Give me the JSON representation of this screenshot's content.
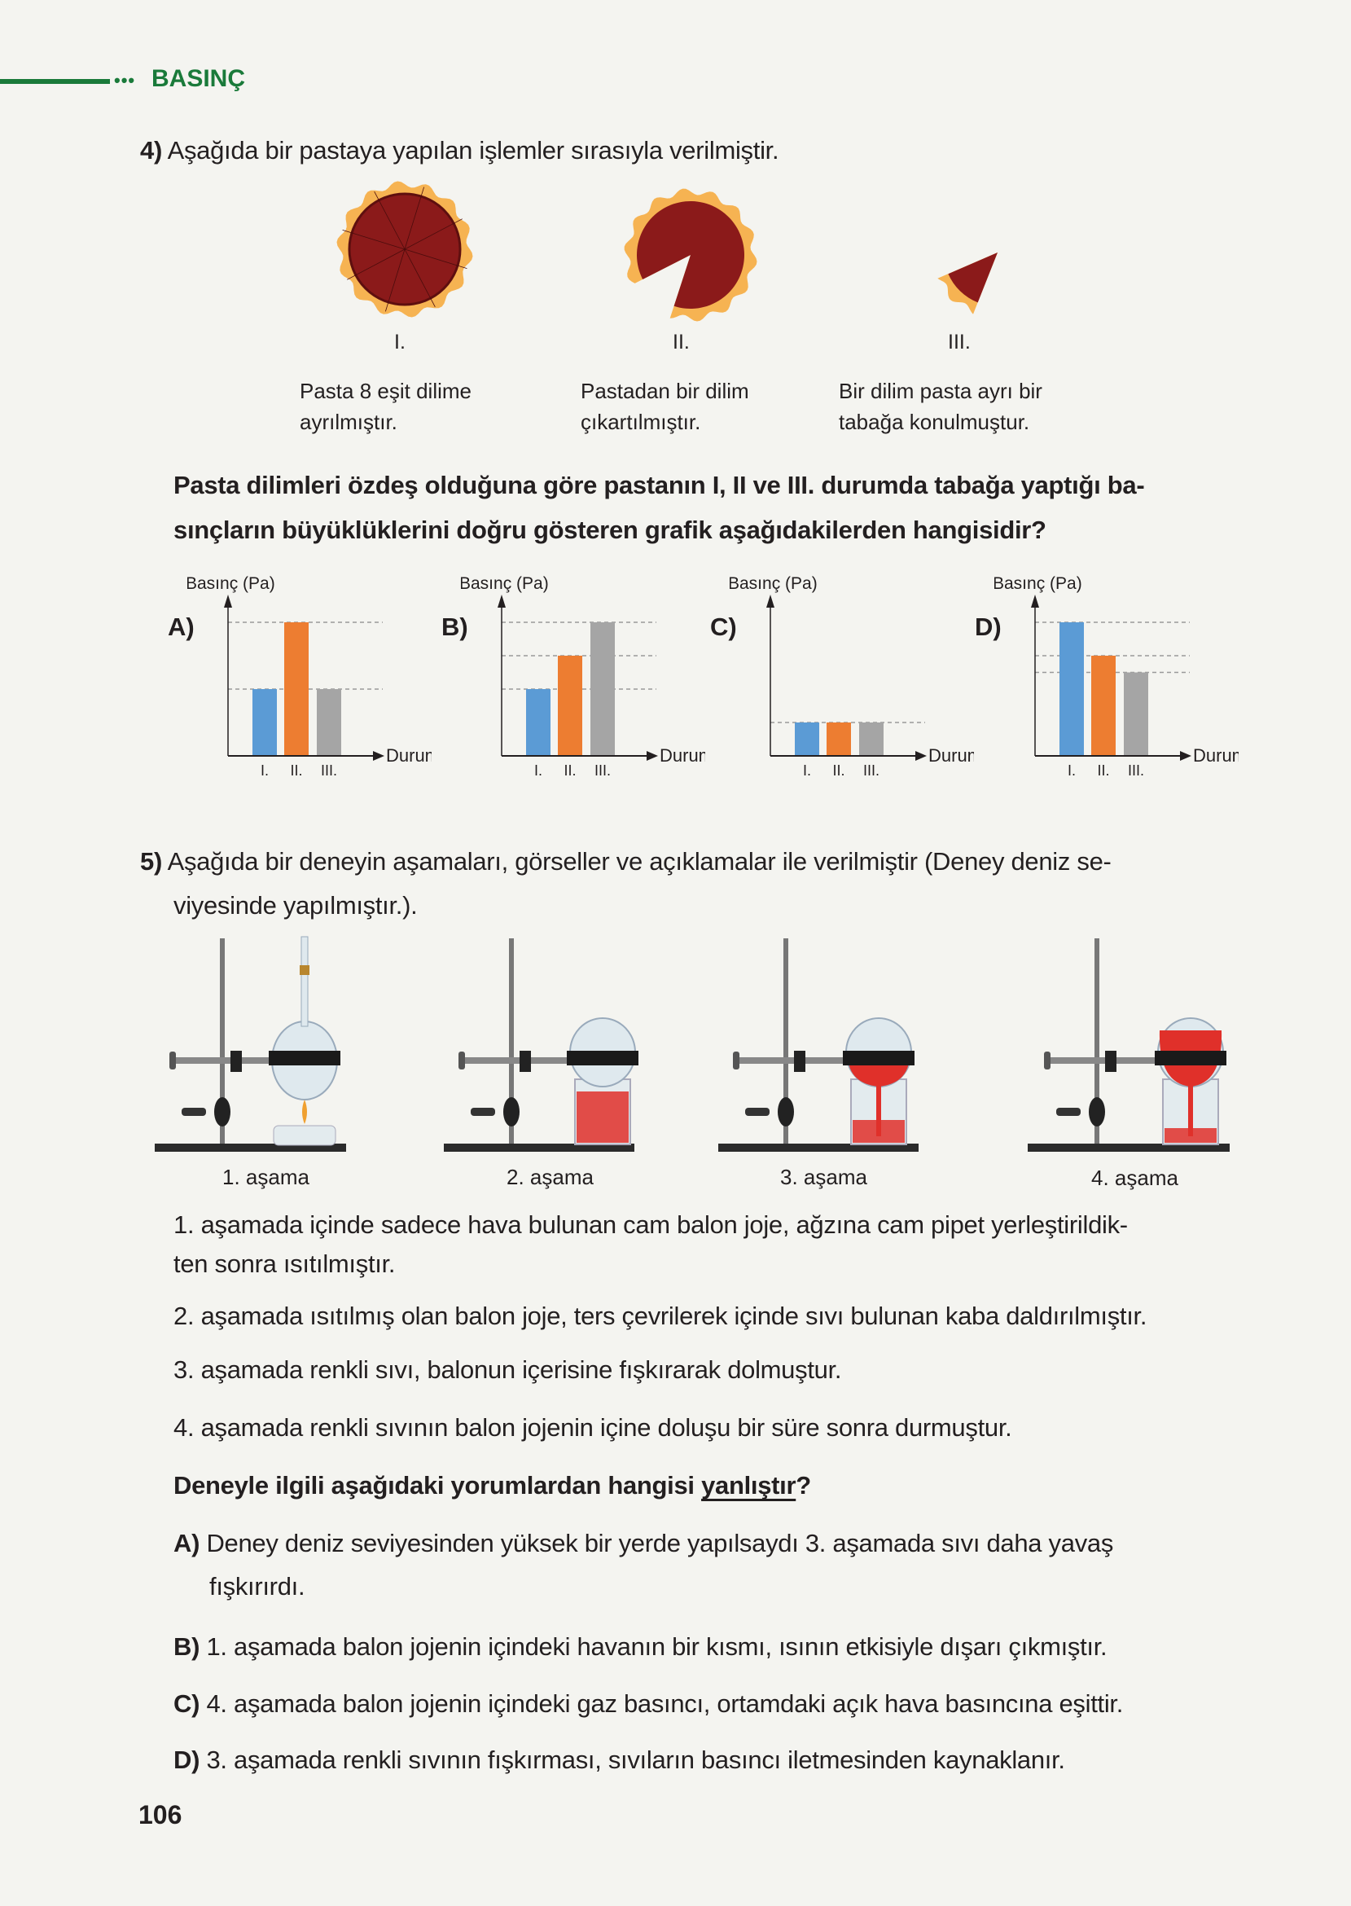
{
  "header": {
    "section_title": "BASINÇ"
  },
  "colors": {
    "accent_green": "#1a7a3a",
    "bar_I": "#5b9bd5",
    "bar_II": "#ed7d31",
    "bar_III": "#a5a5a5",
    "pie_filling": "#8b1a1a",
    "pie_crust": "#f6b352",
    "liquid": "#e0302a"
  },
  "q4": {
    "number": "4)",
    "text": "Aşağıda bir pastaya yapılan işlemler sırasıyla verilmiştir.",
    "stages": [
      {
        "label": "I.",
        "caption1": "Pasta 8 eşit dilime",
        "caption2": "ayrılmıştır."
      },
      {
        "label": "II.",
        "caption1": "Pastadan bir dilim",
        "caption2": "çıkartılmıştır."
      },
      {
        "label": "III.",
        "caption1": "Bir dilim pasta ayrı bir",
        "caption2": "tabağa konulmuştur."
      }
    ],
    "question_line1": "Pasta dilimleri özdeş olduğuna göre pastanın I, II ve III. durumda tabağa yaptığı ba-",
    "question_line2": "sınçların büyüklüklerini doğru gösteren grafik aşağıdakilerden hangisidir?"
  },
  "chart_data": [
    {
      "type": "bar",
      "option": "A)",
      "ylabel": "Basınç (Pa)",
      "xlabel": "Durum",
      "categories": [
        "I.",
        "II.",
        "III."
      ],
      "values": [
        2,
        4,
        2
      ],
      "grid": "dashed reference lines"
    },
    {
      "type": "bar",
      "option": "B)",
      "ylabel": "Basınç (Pa)",
      "xlabel": "Durum",
      "categories": [
        "I.",
        "II.",
        "III."
      ],
      "values": [
        2,
        3,
        4
      ],
      "grid": "dashed reference lines"
    },
    {
      "type": "bar",
      "option": "C)",
      "ylabel": "Basınç (Pa)",
      "xlabel": "Durum",
      "categories": [
        "I.",
        "II.",
        "III."
      ],
      "values": [
        1,
        1,
        1
      ],
      "grid": "dashed reference lines"
    },
    {
      "type": "bar",
      "option": "D)",
      "ylabel": "Basınç (Pa)",
      "xlabel": "Durum",
      "categories": [
        "I.",
        "II.",
        "III."
      ],
      "values": [
        4,
        3,
        2.5
      ],
      "grid": "dashed reference lines"
    }
  ],
  "q5": {
    "number": "5)",
    "text_line1": "Aşağıda bir deneyin aşamaları, görseller ve açıklamalar ile verilmiştir (Deney deniz se-",
    "text_line2": "viyesinde yapılmıştır.).",
    "stage_labels": [
      "1. aşama",
      "2. aşama",
      "3. aşama",
      "4. aşama"
    ],
    "statements": [
      "1. aşamada içinde sadece hava bulunan cam balon joje, ağzına cam pipet yerleştirildik-",
      "ten sonra ısıtılmıştır.",
      "2. aşamada ısıtılmış olan balon joje, ters çevrilerek içinde sıvı bulunan kaba daldırılmıştır.",
      "3. aşamada renkli sıvı, balonun içerisine fışkırarak dolmuştur.",
      "4. aşamada renkli sıvının balon jojenin içine doluşu bir süre sonra durmuştur."
    ],
    "question_prefix": "Deneyle ilgili aşağıdaki yorumlardan hangisi ",
    "question_underlined": "yanlıştır",
    "question_suffix": "?",
    "options": [
      {
        "letter": "A)",
        "line1": "Deney deniz seviyesinden yüksek bir yerde yapılsaydı 3. aşamada sıvı daha yavaş",
        "line2": "fışkırırdı."
      },
      {
        "letter": "B)",
        "line1": "1. aşamada balon jojenin içindeki havanın bir kısmı, ısının etkisiyle dışarı çıkmıştır."
      },
      {
        "letter": "C)",
        "line1": "4. aşamada balon jojenin içindeki gaz basıncı, ortamdaki açık hava basıncına eşittir."
      },
      {
        "letter": "D)",
        "line1": "3. aşamada renkli sıvının fışkırması, sıvıların basıncı iletmesinden kaynaklanır."
      }
    ]
  },
  "footer": {
    "page_number": "106"
  }
}
